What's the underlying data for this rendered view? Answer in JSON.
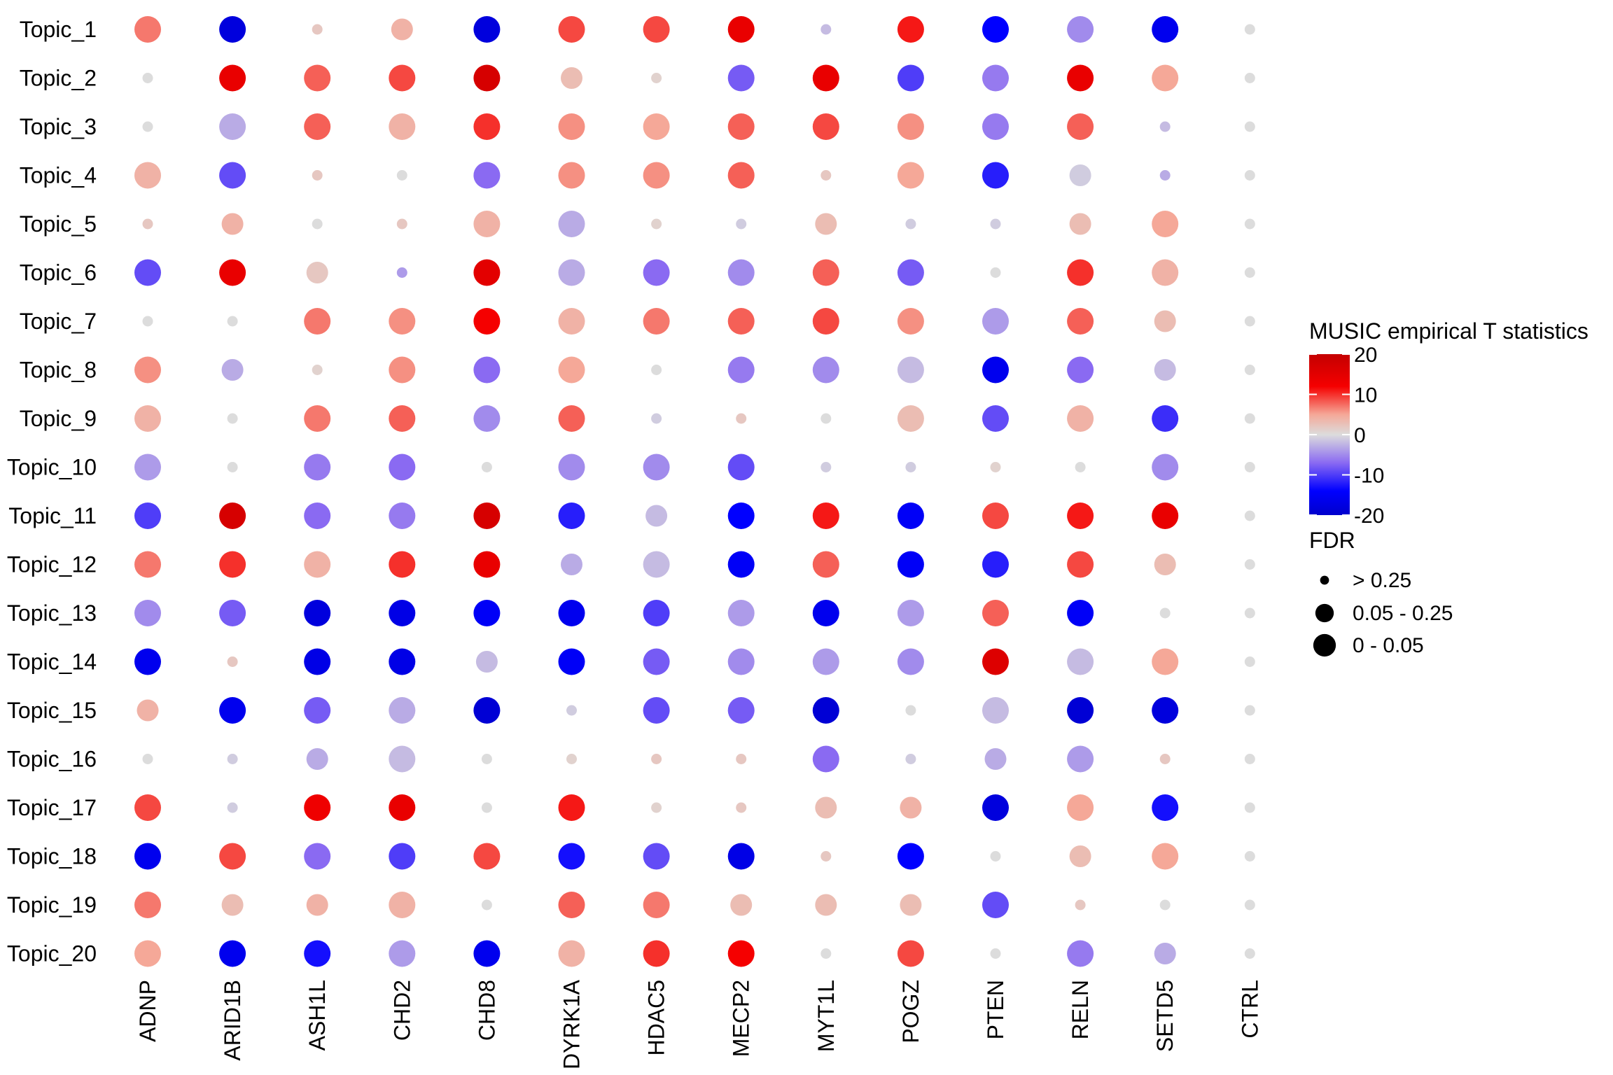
{
  "chart_data": {
    "type": "dotplot",
    "title": "",
    "xlabel": "",
    "ylabel": "",
    "columns": [
      "ADNP",
      "ARID1B",
      "ASH1L",
      "CHD2",
      "CHD8",
      "DYRK1A",
      "HDAC5",
      "MECP2",
      "MYT1L",
      "POGZ",
      "PTEN",
      "RELN",
      "SETD5",
      "CTRL"
    ],
    "rows": [
      "Topic_1",
      "Topic_2",
      "Topic_3",
      "Topic_4",
      "Topic_5",
      "Topic_6",
      "Topic_7",
      "Topic_8",
      "Topic_9",
      "Topic_10",
      "Topic_11",
      "Topic_12",
      "Topic_13",
      "Topic_14",
      "Topic_15",
      "Topic_16",
      "Topic_17",
      "Topic_18",
      "Topic_19",
      "Topic_20"
    ],
    "color_legend": {
      "title": "MUSIC empirical T statistics",
      "range": [
        -20,
        20
      ],
      "ticks": [
        "20",
        "10",
        "0",
        "-10",
        "-20"
      ],
      "tick_values": [
        20,
        10,
        0,
        -10,
        -20
      ],
      "stops": [
        {
          "value": -20,
          "color": "#0000cc"
        },
        {
          "value": -14,
          "color": "#0000ff"
        },
        {
          "value": -7,
          "color": "#8a6af2"
        },
        {
          "value": 0,
          "color": "#dcdcdc"
        },
        {
          "value": 5,
          "color": "#f5a898"
        },
        {
          "value": 12,
          "color": "#f50000"
        },
        {
          "value": 20,
          "color": "#c40000"
        }
      ]
    },
    "size_legend": {
      "title": "FDR",
      "labels": [
        "> 0.25",
        "0.05 - 0.25",
        "0 - 0.05"
      ],
      "levels": [
        1,
        2,
        3
      ]
    },
    "t_values": [
      [
        7,
        -18,
        2,
        4,
        -18,
        9,
        9,
        14,
        -2,
        11,
        -14,
        -5,
        -16,
        0
      ],
      [
        0,
        14,
        8,
        9,
        17,
        3,
        1,
        -8,
        14,
        -10,
        -6,
        14,
        5,
        0
      ],
      [
        0,
        -3,
        8,
        4,
        10,
        6,
        5,
        8,
        9,
        6,
        -6,
        8,
        -2,
        0
      ],
      [
        4,
        -9,
        2,
        0,
        -7,
        6,
        6,
        8,
        2,
        5,
        -12,
        -1,
        -3,
        0
      ],
      [
        2,
        4,
        0,
        2,
        4,
        -3,
        1,
        -1,
        3,
        -1,
        -1,
        3,
        5,
        0
      ],
      [
        -9,
        14,
        2,
        -4,
        15,
        -3,
        -7,
        -5,
        8,
        -8,
        0,
        10,
        4,
        0
      ],
      [
        0,
        0,
        7,
        6,
        12,
        4,
        7,
        8,
        9,
        6,
        -4,
        8,
        3,
        0
      ],
      [
        6,
        -3,
        1,
        6,
        -7,
        5,
        0,
        -6,
        -5,
        -2,
        -16,
        -7,
        -2,
        0
      ],
      [
        4,
        0,
        7,
        8,
        -5,
        8,
        -1,
        2,
        0,
        3,
        -9,
        4,
        -11,
        0
      ],
      [
        -4,
        0,
        -6,
        -7,
        0,
        -5,
        -5,
        -9,
        -1,
        -1,
        1,
        0,
        -5,
        0
      ],
      [
        -10,
        17,
        -7,
        -6,
        17,
        -12,
        -2,
        -14,
        11,
        -15,
        9,
        11,
        14,
        0
      ],
      [
        7,
        10,
        4,
        10,
        14,
        -3,
        -2,
        -15,
        8,
        -15,
        -12,
        9,
        3,
        0
      ],
      [
        -5,
        -8,
        -18,
        -17,
        -15,
        -16,
        -10,
        -4,
        -16,
        -4,
        8,
        -15,
        0,
        0
      ],
      [
        -16,
        2,
        -17,
        -17,
        -2,
        -15,
        -8,
        -5,
        -4,
        -5,
        16,
        -2,
        5,
        0
      ],
      [
        4,
        -16,
        -8,
        -3,
        -19,
        -1,
        -9,
        -8,
        -19,
        0,
        -2,
        -19,
        -18,
        0
      ],
      [
        0,
        -1,
        -3,
        -2,
        0,
        1,
        2,
        2,
        -7,
        -1,
        -3,
        -4,
        2,
        0
      ],
      [
        9,
        -1,
        13,
        14,
        0,
        11,
        1,
        2,
        3,
        4,
        -18,
        5,
        -13,
        0
      ],
      [
        -16,
        9,
        -7,
        -10,
        9,
        -13,
        -9,
        -17,
        2,
        -14,
        0,
        3,
        5,
        0
      ],
      [
        7,
        3,
        4,
        4,
        0,
        8,
        7,
        3,
        3,
        3,
        -9,
        2,
        0,
        0
      ],
      [
        5,
        -16,
        -13,
        -4,
        -16,
        4,
        10,
        12,
        0,
        9,
        0,
        -6,
        -3,
        0
      ]
    ],
    "fdr_levels": [
      [
        3,
        3,
        1,
        2,
        3,
        3,
        3,
        3,
        1,
        3,
        3,
        3,
        3,
        1
      ],
      [
        1,
        3,
        3,
        3,
        3,
        2,
        1,
        3,
        3,
        3,
        3,
        3,
        3,
        1
      ],
      [
        1,
        3,
        3,
        3,
        3,
        3,
        3,
        3,
        3,
        3,
        3,
        3,
        1,
        1
      ],
      [
        3,
        3,
        1,
        1,
        3,
        3,
        3,
        3,
        1,
        3,
        3,
        2,
        1,
        1
      ],
      [
        1,
        2,
        1,
        1,
        3,
        3,
        1,
        1,
        2,
        1,
        1,
        2,
        3,
        1
      ],
      [
        3,
        3,
        2,
        1,
        3,
        3,
        3,
        3,
        3,
        3,
        1,
        3,
        3,
        1
      ],
      [
        1,
        1,
        3,
        3,
        3,
        3,
        3,
        3,
        3,
        3,
        3,
        3,
        2,
        1
      ],
      [
        3,
        2,
        1,
        3,
        3,
        3,
        1,
        3,
        3,
        3,
        3,
        3,
        2,
        1
      ],
      [
        3,
        1,
        3,
        3,
        3,
        3,
        1,
        1,
        1,
        3,
        3,
        3,
        3,
        1
      ],
      [
        3,
        1,
        3,
        3,
        1,
        3,
        3,
        3,
        1,
        1,
        1,
        1,
        3,
        1
      ],
      [
        3,
        3,
        3,
        3,
        3,
        3,
        2,
        3,
        3,
        3,
        3,
        3,
        3,
        1
      ],
      [
        3,
        3,
        3,
        3,
        3,
        2,
        3,
        3,
        3,
        3,
        3,
        3,
        2,
        1
      ],
      [
        3,
        3,
        3,
        3,
        3,
        3,
        3,
        3,
        3,
        3,
        3,
        3,
        1,
        1
      ],
      [
        3,
        1,
        3,
        3,
        2,
        3,
        3,
        3,
        3,
        3,
        3,
        3,
        3,
        1
      ],
      [
        2,
        3,
        3,
        3,
        3,
        1,
        3,
        3,
        3,
        1,
        3,
        3,
        3,
        1
      ],
      [
        1,
        1,
        2,
        3,
        1,
        1,
        1,
        1,
        3,
        1,
        2,
        3,
        1,
        1
      ],
      [
        3,
        1,
        3,
        3,
        1,
        3,
        1,
        1,
        2,
        2,
        3,
        3,
        3,
        1
      ],
      [
        3,
        3,
        3,
        3,
        3,
        3,
        3,
        3,
        1,
        3,
        1,
        2,
        3,
        1
      ],
      [
        3,
        2,
        2,
        3,
        1,
        3,
        3,
        2,
        2,
        2,
        3,
        1,
        1,
        1
      ],
      [
        3,
        3,
        3,
        3,
        3,
        3,
        3,
        3,
        1,
        3,
        1,
        3,
        2,
        1
      ]
    ]
  }
}
